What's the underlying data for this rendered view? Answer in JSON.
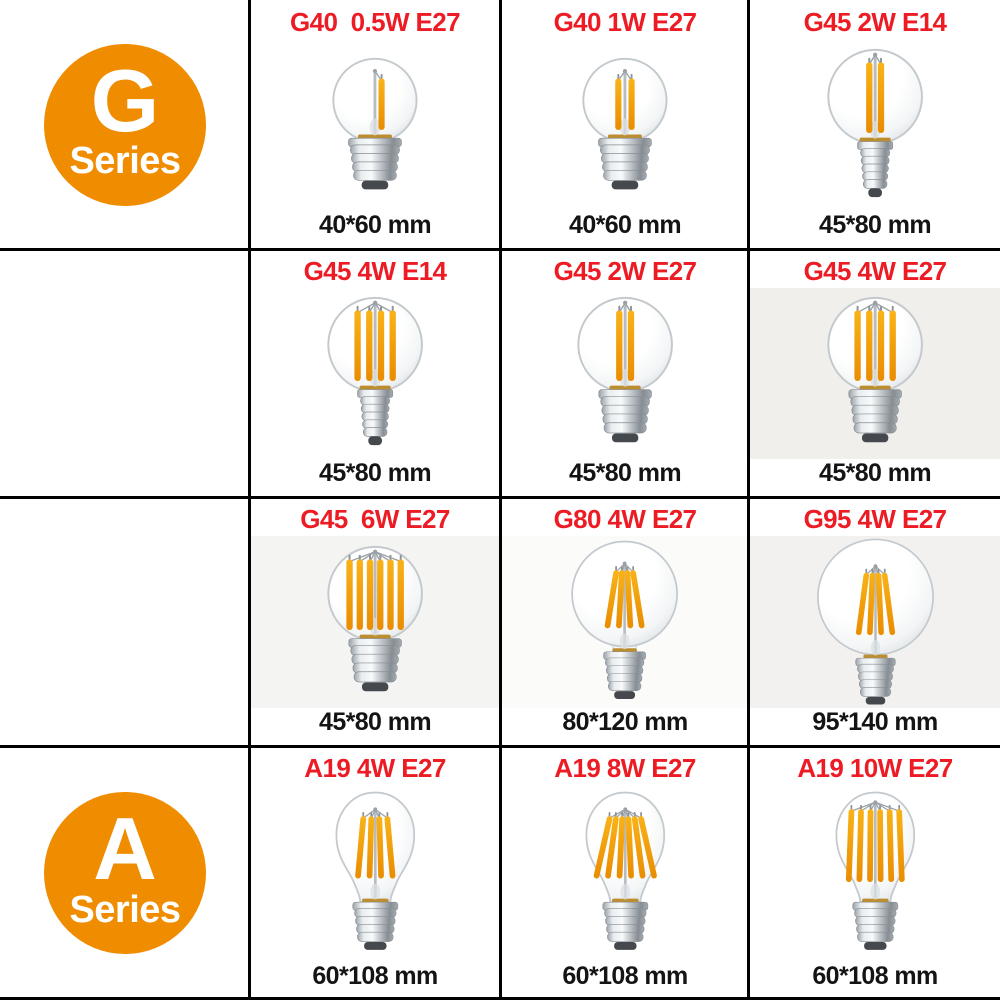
{
  "colors": {
    "accent_red": "#EC1B24",
    "badge_orange": "#F08C00",
    "divider_black": "#000000",
    "text_black": "#141414",
    "filament_orange": "#F2A00A",
    "metal_silver": "#C2C7CB"
  },
  "badges": [
    {
      "letter": "G",
      "label": "Series"
    },
    {
      "letter": "A",
      "label": "Series"
    }
  ],
  "products": [
    {
      "title": "G40  0.5W E27",
      "size": "40*60 mm",
      "art": {
        "shape": "G40",
        "filaments": 1,
        "base": "E27",
        "bg": "#ffffff"
      }
    },
    {
      "title": "G40 1W E27",
      "size": "40*60 mm",
      "art": {
        "shape": "G40",
        "filaments": 2,
        "base": "E27",
        "bg": "#ffffff"
      }
    },
    {
      "title": "G45 2W E14",
      "size": "45*80 mm",
      "art": {
        "shape": "G45",
        "filaments": 2,
        "base": "E14",
        "bg": "#ffffff"
      }
    },
    {
      "title": "G45 4W E14",
      "size": "45*80 mm",
      "art": {
        "shape": "G45",
        "filaments": 4,
        "base": "E14",
        "bg": "#ffffff"
      }
    },
    {
      "title": "G45 2W E27",
      "size": "45*80 mm",
      "art": {
        "shape": "G45",
        "filaments": 2,
        "base": "E27",
        "bg": "#ffffff"
      }
    },
    {
      "title": "G45 4W E27",
      "size": "45*80 mm",
      "art": {
        "shape": "G45",
        "filaments": 4,
        "base": "E27",
        "bg": "#f1efec"
      }
    },
    {
      "title": "G45  6W E27",
      "size": "45*80 mm",
      "art": {
        "shape": "G45",
        "filaments": 6,
        "base": "E27",
        "spread": 10.5,
        "bg": "#f4f5f3"
      }
    },
    {
      "title": "G80 4W E27",
      "size": "80*120 mm",
      "art": {
        "shape": "G80",
        "filaments": 4,
        "base": "E27",
        "slant": 0.5,
        "bg": "#fbfbfa"
      }
    },
    {
      "title": "G95 4W E27",
      "size": "95*140 mm",
      "art": {
        "shape": "G95",
        "filaments": 4,
        "base": "E27",
        "slant": 0.45,
        "bg": "#f2f1ef"
      }
    },
    {
      "title": "A19 4W E27",
      "size": "60*108 mm",
      "art": {
        "shape": "A19",
        "filaments": 4,
        "base": "E27",
        "slant": 0.3,
        "bg": "#ffffff"
      }
    },
    {
      "title": "A19 8W E27",
      "size": "60*108 mm",
      "art": {
        "shape": "A19",
        "filaments": 6,
        "base": "E27",
        "slant": 0.45,
        "bg": "#ffffff"
      }
    },
    {
      "title": "A19 10W E27",
      "size": "60*108 mm",
      "art": {
        "shape": "A19",
        "filaments": 6,
        "base": "E27",
        "slant": 0.1,
        "rodTop": 40,
        "rodBot": 116,
        "spread": 12,
        "bg": "#ffffff"
      }
    }
  ]
}
